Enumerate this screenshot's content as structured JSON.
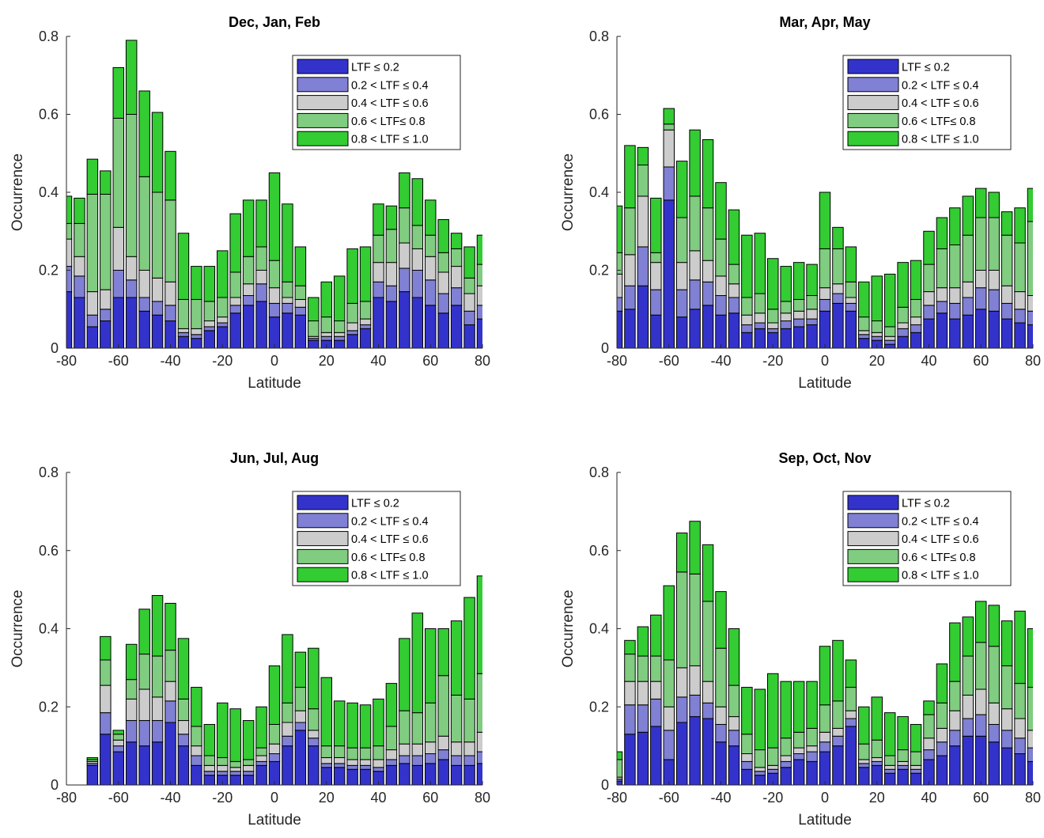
{
  "chart_data": [
    {
      "type": "bar",
      "stacked": true,
      "title": "Dec, Jan, Feb",
      "xlabel": "Latitude",
      "ylabel": "Occurrence",
      "xlim": [
        -80,
        80
      ],
      "ylim": [
        0,
        0.8
      ],
      "xticks": [
        "-80",
        "-60",
        "-40",
        "-20",
        "0",
        "20",
        "40",
        "60",
        "80"
      ],
      "yticks": [
        "0",
        "0.2",
        "0.4",
        "0.6",
        "0.8"
      ],
      "legend_position": "top-right",
      "x": [
        -80,
        -75,
        -70,
        -65,
        -60,
        -55,
        -50,
        -45,
        -40,
        -35,
        -30,
        -25,
        -20,
        -15,
        -10,
        -5,
        0,
        5,
        10,
        15,
        20,
        25,
        30,
        35,
        40,
        45,
        50,
        55,
        60,
        65,
        70,
        75,
        80
      ],
      "series": [
        {
          "name": "LTF ≤ 0.2",
          "color": "#3333cc",
          "values": [
            0.145,
            0.13,
            0.055,
            0.07,
            0.13,
            0.13,
            0.095,
            0.085,
            0.07,
            0.03,
            0.025,
            0.045,
            0.055,
            0.09,
            0.11,
            0.12,
            0.08,
            0.09,
            0.085,
            0.02,
            0.02,
            0.02,
            0.035,
            0.05,
            0.13,
            0.12,
            0.145,
            0.13,
            0.11,
            0.09,
            0.11,
            0.06,
            0.075
          ]
        },
        {
          "name": "0.2 < LTF ≤ 0.4",
          "color": "#8080d4",
          "values": [
            0.065,
            0.055,
            0.03,
            0.03,
            0.07,
            0.045,
            0.035,
            0.035,
            0.04,
            0.01,
            0.01,
            0.01,
            0.01,
            0.02,
            0.025,
            0.045,
            0.035,
            0.025,
            0.02,
            0.005,
            0.01,
            0.01,
            0.01,
            0.01,
            0.04,
            0.04,
            0.06,
            0.07,
            0.065,
            0.05,
            0.045,
            0.035,
            0.035
          ]
        },
        {
          "name": "0.4 < LTF ≤ 0.6",
          "color": "#cccccc",
          "values": [
            0.07,
            0.05,
            0.06,
            0.05,
            0.11,
            0.06,
            0.07,
            0.06,
            0.06,
            0.01,
            0.015,
            0.015,
            0.015,
            0.02,
            0.03,
            0.035,
            0.04,
            0.015,
            0.02,
            0.005,
            0.01,
            0.01,
            0.02,
            0.015,
            0.05,
            0.06,
            0.065,
            0.055,
            0.06,
            0.055,
            0.055,
            0.045,
            0.05
          ]
        },
        {
          "name": "0.6 < LTF≤ 0.8",
          "color": "#80cc80",
          "values": [
            0.04,
            0.085,
            0.25,
            0.245,
            0.28,
            0.365,
            0.24,
            0.22,
            0.21,
            0.075,
            0.075,
            0.05,
            0.05,
            0.065,
            0.07,
            0.06,
            0.07,
            0.04,
            0.035,
            0.04,
            0.04,
            0.03,
            0.05,
            0.045,
            0.07,
            0.085,
            0.09,
            0.06,
            0.055,
            0.05,
            0.045,
            0.04,
            0.055
          ]
        },
        {
          "name": "0.8 < LTF ≤ 1.0",
          "color": "#33cc33",
          "values": [
            0.07,
            0.065,
            0.09,
            0.06,
            0.13,
            0.19,
            0.22,
            0.205,
            0.125,
            0.17,
            0.085,
            0.09,
            0.12,
            0.15,
            0.145,
            0.12,
            0.225,
            0.2,
            0.1,
            0.06,
            0.09,
            0.115,
            0.14,
            0.14,
            0.08,
            0.06,
            0.09,
            0.12,
            0.09,
            0.085,
            0.04,
            0.08,
            0.075
          ]
        }
      ]
    },
    {
      "type": "bar",
      "stacked": true,
      "title": "Mar, Apr, May",
      "xlabel": "Latitude",
      "ylabel": "Occurrence",
      "xlim": [
        -80,
        80
      ],
      "ylim": [
        0,
        0.8
      ],
      "xticks": [
        "-80",
        "-60",
        "-40",
        "-20",
        "0",
        "20",
        "40",
        "60",
        "80"
      ],
      "yticks": [
        "0",
        "0.2",
        "0.4",
        "0.6",
        "0.8"
      ],
      "legend_position": "top-right",
      "x": [
        -80,
        -75,
        -70,
        -65,
        -60,
        -55,
        -50,
        -45,
        -40,
        -35,
        -30,
        -25,
        -20,
        -15,
        -10,
        -5,
        0,
        5,
        10,
        15,
        20,
        25,
        30,
        35,
        40,
        45,
        50,
        55,
        60,
        65,
        70,
        75,
        80
      ],
      "series": [
        {
          "name": "LTF ≤ 0.2",
          "color": "#3333cc",
          "values": [
            0.095,
            0.1,
            0.16,
            0.085,
            0.38,
            0.08,
            0.1,
            0.11,
            0.085,
            0.09,
            0.04,
            0.05,
            0.04,
            0.05,
            0.055,
            0.06,
            0.095,
            0.115,
            0.095,
            0.025,
            0.02,
            0.01,
            0.03,
            0.04,
            0.075,
            0.09,
            0.075,
            0.085,
            0.1,
            0.095,
            0.075,
            0.065,
            0.06
          ]
        },
        {
          "name": "0.2 < LTF ≤ 0.4",
          "color": "#8080d4",
          "values": [
            0.035,
            0.06,
            0.1,
            0.065,
            0.085,
            0.07,
            0.075,
            0.06,
            0.05,
            0.04,
            0.02,
            0.015,
            0.01,
            0.02,
            0.02,
            0.015,
            0.03,
            0.025,
            0.02,
            0.01,
            0.01,
            0.01,
            0.02,
            0.02,
            0.035,
            0.03,
            0.04,
            0.045,
            0.055,
            0.055,
            0.04,
            0.035,
            0.035
          ]
        },
        {
          "name": "0.4 < LTF ≤ 0.6",
          "color": "#cccccc",
          "values": [
            0.06,
            0.08,
            0.13,
            0.07,
            0.095,
            0.07,
            0.075,
            0.055,
            0.05,
            0.035,
            0.025,
            0.025,
            0.015,
            0.02,
            0.02,
            0.025,
            0.03,
            0.025,
            0.015,
            0.01,
            0.01,
            0.01,
            0.015,
            0.02,
            0.035,
            0.035,
            0.04,
            0.04,
            0.045,
            0.05,
            0.045,
            0.045,
            0.04
          ]
        },
        {
          "name": "0.6 < LTF≤ 0.8",
          "color": "#80cc80",
          "values": [
            0.055,
            0.12,
            0.08,
            0.025,
            0.015,
            0.115,
            0.14,
            0.135,
            0.095,
            0.05,
            0.045,
            0.05,
            0.035,
            0.03,
            0.03,
            0.035,
            0.1,
            0.09,
            0.04,
            0.035,
            0.03,
            0.025,
            0.04,
            0.045,
            0.07,
            0.1,
            0.11,
            0.12,
            0.135,
            0.135,
            0.13,
            0.125,
            0.19
          ]
        },
        {
          "name": "0.8 < LTF ≤ 1.0",
          "color": "#33cc33",
          "values": [
            0.12,
            0.16,
            0.045,
            0.14,
            0.04,
            0.145,
            0.17,
            0.175,
            0.145,
            0.14,
            0.16,
            0.155,
            0.13,
            0.09,
            0.095,
            0.08,
            0.145,
            0.055,
            0.09,
            0.09,
            0.115,
            0.135,
            0.115,
            0.1,
            0.085,
            0.08,
            0.095,
            0.1,
            0.075,
            0.065,
            0.06,
            0.09,
            0.085
          ]
        }
      ]
    },
    {
      "type": "bar",
      "stacked": true,
      "title": "Jun, Jul, Aug",
      "xlabel": "Latitude",
      "ylabel": "Occurrence",
      "xlim": [
        -80,
        80
      ],
      "ylim": [
        0,
        0.8
      ],
      "xticks": [
        "-80",
        "-60",
        "-40",
        "-20",
        "0",
        "20",
        "40",
        "60",
        "80"
      ],
      "yticks": [
        "0",
        "0.2",
        "0.4",
        "0.6",
        "0.8"
      ],
      "legend_position": "top-right",
      "x": [
        -70,
        -65,
        -60,
        -55,
        -50,
        -45,
        -40,
        -35,
        -30,
        -25,
        -20,
        -15,
        -10,
        -5,
        0,
        5,
        10,
        15,
        20,
        25,
        30,
        35,
        40,
        45,
        50,
        55,
        60,
        65,
        70,
        75,
        80
      ],
      "series": [
        {
          "name": "LTF ≤ 0.2",
          "color": "#3333cc",
          "values": [
            0.05,
            0.13,
            0.085,
            0.11,
            0.1,
            0.11,
            0.16,
            0.1,
            0.05,
            0.025,
            0.025,
            0.025,
            0.025,
            0.05,
            0.06,
            0.1,
            0.14,
            0.1,
            0.045,
            0.045,
            0.04,
            0.04,
            0.035,
            0.05,
            0.055,
            0.05,
            0.055,
            0.065,
            0.05,
            0.05,
            0.055
          ]
        },
        {
          "name": "0.2 < LTF ≤ 0.4",
          "color": "#8080d4",
          "values": [
            0.005,
            0.055,
            0.015,
            0.055,
            0.065,
            0.055,
            0.055,
            0.03,
            0.025,
            0.01,
            0.01,
            0.01,
            0.01,
            0.01,
            0.02,
            0.025,
            0.02,
            0.02,
            0.01,
            0.01,
            0.01,
            0.01,
            0.01,
            0.015,
            0.02,
            0.025,
            0.025,
            0.025,
            0.025,
            0.025,
            0.03
          ]
        },
        {
          "name": "0.4 < LTF ≤ 0.6",
          "color": "#cccccc",
          "values": [
            0.005,
            0.07,
            0.015,
            0.055,
            0.08,
            0.06,
            0.05,
            0.035,
            0.025,
            0.015,
            0.015,
            0.01,
            0.015,
            0.015,
            0.025,
            0.035,
            0.03,
            0.02,
            0.015,
            0.015,
            0.015,
            0.015,
            0.02,
            0.025,
            0.03,
            0.03,
            0.03,
            0.035,
            0.035,
            0.035,
            0.05
          ]
        },
        {
          "name": "0.6 < LTF≤ 0.8",
          "color": "#80cc80",
          "values": [
            0.005,
            0.065,
            0.015,
            0.05,
            0.09,
            0.105,
            0.08,
            0.055,
            0.05,
            0.025,
            0.02,
            0.015,
            0.015,
            0.02,
            0.05,
            0.05,
            0.06,
            0.055,
            0.03,
            0.03,
            0.03,
            0.03,
            0.035,
            0.06,
            0.085,
            0.08,
            0.1,
            0.155,
            0.12,
            0.11,
            0.15
          ]
        },
        {
          "name": "0.8 < LTF ≤ 1.0",
          "color": "#33cc33",
          "values": [
            0.005,
            0.06,
            0.01,
            0.09,
            0.115,
            0.155,
            0.12,
            0.155,
            0.1,
            0.08,
            0.14,
            0.135,
            0.1,
            0.105,
            0.15,
            0.175,
            0.09,
            0.155,
            0.175,
            0.115,
            0.115,
            0.11,
            0.12,
            0.11,
            0.185,
            0.255,
            0.19,
            0.12,
            0.19,
            0.26,
            0.25
          ]
        }
      ]
    },
    {
      "type": "bar",
      "stacked": true,
      "title": "Sep, Oct, Nov",
      "xlabel": "Latitude",
      "ylabel": "Occurrence",
      "xlim": [
        -80,
        80
      ],
      "ylim": [
        0,
        0.8
      ],
      "xticks": [
        "-80",
        "-60",
        "-40",
        "-20",
        "0",
        "20",
        "40",
        "60",
        "80"
      ],
      "yticks": [
        "0",
        "0.2",
        "0.4",
        "0.6",
        "0.8"
      ],
      "legend_position": "top-right",
      "x": [
        -80,
        -75,
        -70,
        -65,
        -60,
        -55,
        -50,
        -45,
        -40,
        -35,
        -30,
        -25,
        -20,
        -15,
        -10,
        -5,
        0,
        5,
        10,
        15,
        20,
        25,
        30,
        35,
        40,
        45,
        50,
        55,
        60,
        65,
        70,
        75,
        80
      ],
      "series": [
        {
          "name": "LTF ≤ 0.2",
          "color": "#3333cc",
          "values": [
            0.01,
            0.13,
            0.135,
            0.15,
            0.065,
            0.16,
            0.175,
            0.17,
            0.11,
            0.1,
            0.04,
            0.025,
            0.03,
            0.045,
            0.065,
            0.06,
            0.085,
            0.1,
            0.15,
            0.045,
            0.05,
            0.03,
            0.04,
            0.03,
            0.065,
            0.075,
            0.1,
            0.125,
            0.125,
            0.11,
            0.095,
            0.08,
            0.06
          ]
        },
        {
          "name": "0.2 < LTF ≤ 0.4",
          "color": "#8080d4",
          "values": [
            0.005,
            0.075,
            0.07,
            0.07,
            0.075,
            0.065,
            0.055,
            0.04,
            0.045,
            0.04,
            0.02,
            0.01,
            0.01,
            0.015,
            0.015,
            0.025,
            0.025,
            0.025,
            0.02,
            0.01,
            0.01,
            0.01,
            0.01,
            0.01,
            0.025,
            0.035,
            0.04,
            0.045,
            0.055,
            0.045,
            0.045,
            0.04,
            0.035
          ]
        },
        {
          "name": "0.4 < LTF ≤ 0.6",
          "color": "#cccccc",
          "values": [
            0.005,
            0.06,
            0.06,
            0.045,
            0.06,
            0.075,
            0.075,
            0.055,
            0.045,
            0.035,
            0.02,
            0.01,
            0.01,
            0.015,
            0.015,
            0.015,
            0.025,
            0.02,
            0.02,
            0.01,
            0.01,
            0.01,
            0.01,
            0.01,
            0.03,
            0.035,
            0.05,
            0.06,
            0.065,
            0.055,
            0.055,
            0.05,
            0.045
          ]
        },
        {
          "name": "0.6 < LTF≤ 0.8",
          "color": "#80cc80",
          "values": [
            0.045,
            0.07,
            0.065,
            0.065,
            0.12,
            0.245,
            0.235,
            0.205,
            0.15,
            0.08,
            0.05,
            0.045,
            0.045,
            0.045,
            0.04,
            0.045,
            0.07,
            0.07,
            0.06,
            0.04,
            0.045,
            0.025,
            0.03,
            0.035,
            0.06,
            0.065,
            0.075,
            0.1,
            0.12,
            0.145,
            0.11,
            0.09,
            0.11
          ]
        },
        {
          "name": "0.8 < LTF ≤ 1.0",
          "color": "#33cc33",
          "values": [
            0.02,
            0.035,
            0.075,
            0.105,
            0.19,
            0.1,
            0.135,
            0.145,
            0.145,
            0.145,
            0.12,
            0.155,
            0.19,
            0.145,
            0.13,
            0.12,
            0.15,
            0.155,
            0.07,
            0.095,
            0.11,
            0.11,
            0.085,
            0.07,
            0.035,
            0.1,
            0.15,
            0.1,
            0.105,
            0.105,
            0.115,
            0.185,
            0.15
          ]
        }
      ]
    }
  ]
}
